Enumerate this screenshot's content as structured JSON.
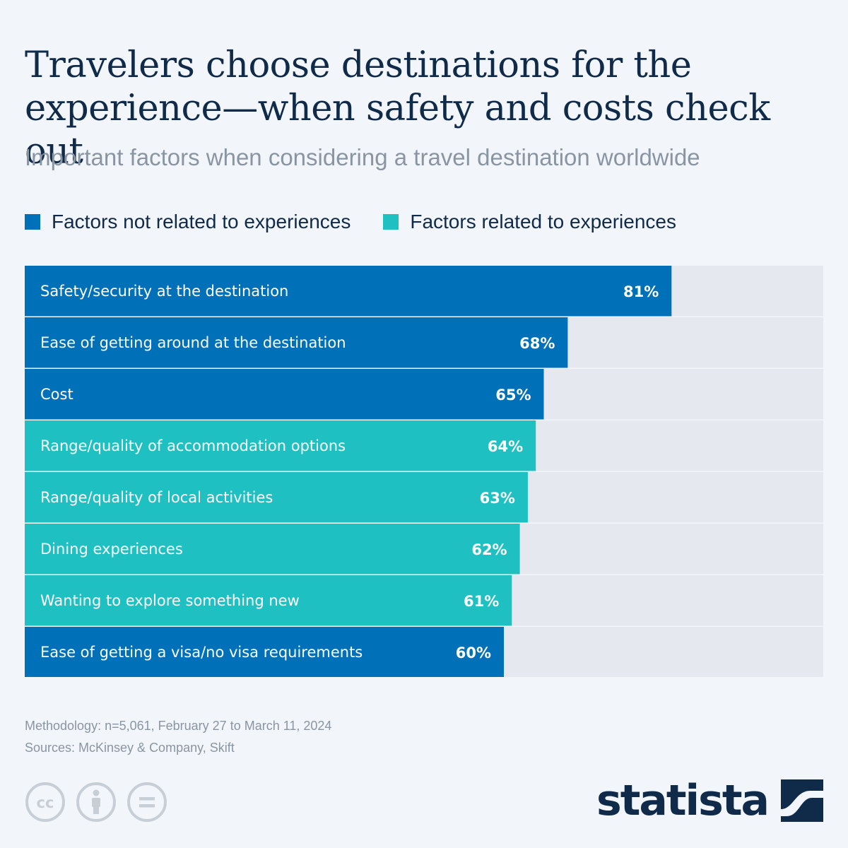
{
  "title": "Travelers choose destinations for the experience—when safety and costs check out",
  "subtitle": "Important factors when considering a travel destination worldwide",
  "legend": [
    {
      "label": "Factors not related to experiences",
      "color": "#0070b8"
    },
    {
      "label": "Factors related to experiences",
      "color": "#1fc0c1"
    }
  ],
  "chart_data": {
    "type": "bar",
    "orientation": "horizontal",
    "xlim": [
      0,
      100
    ],
    "value_suffix": "%",
    "categories": [
      "Safety/security at the destination",
      "Ease of getting around at the destination",
      "Cost",
      "Range/quality of accommodation options",
      "Range/quality of local activities",
      "Dining experiences",
      "Wanting to explore something new",
      "Ease of getting a visa/no visa requirements"
    ],
    "values": [
      81,
      68,
      65,
      64,
      63,
      62,
      61,
      60
    ],
    "value_labels": [
      "81%",
      "68%",
      "65%",
      "64%",
      "63%",
      "62%",
      "61%",
      "60%"
    ],
    "group": [
      "Factors not related to experiences",
      "Factors not related to experiences",
      "Factors not related to experiences",
      "Factors related to experiences",
      "Factors related to experiences",
      "Factors related to experiences",
      "Factors related to experiences",
      "Factors not related to experiences"
    ],
    "colors": {
      "Factors not related to experiences": "#0070b8",
      "Factors related to experiences": "#1fc0c1",
      "track": "#e5e8ee"
    }
  },
  "notes": {
    "methodology": "Methodology: n=5,061, February 27 to March 11, 2024",
    "sources": "Sources: McKinsey & Company, Skift"
  },
  "license_icons": [
    "cc-icon",
    "by-icon",
    "nd-icon"
  ],
  "brand": {
    "name": "statista",
    "mark": "statista-logo-icon"
  }
}
